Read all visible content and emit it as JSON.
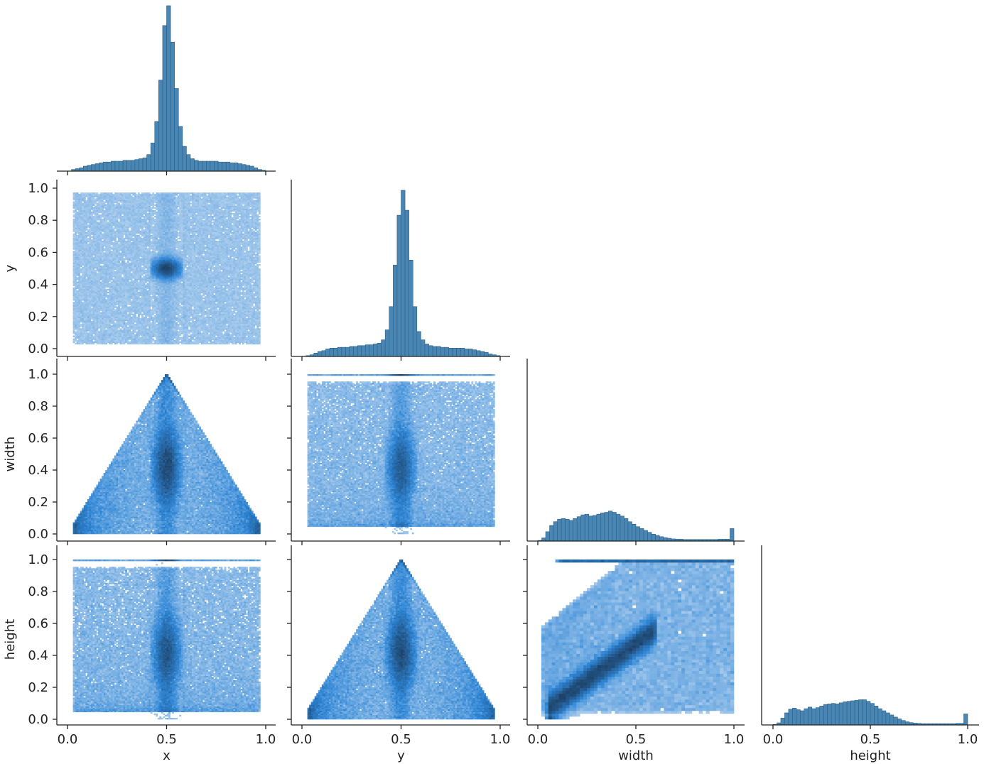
{
  "chart_data": {
    "type": "pairplot",
    "variables": [
      "x",
      "y",
      "width",
      "height"
    ],
    "layout": "lower-triangle (corner)",
    "colors": {
      "hist_fill": "#4a86b4",
      "hist_edge": "#2b5f86",
      "density_light": "#c6dcf2",
      "density_mid": "#2e86d6",
      "density_dark": "#1d3f63"
    },
    "axis_ticks": {
      "unit_short": [
        "0.0",
        "0.5",
        "1.0"
      ],
      "unit_long": [
        "0.0",
        "0.2",
        "0.4",
        "0.6",
        "0.8",
        "1.0"
      ]
    },
    "axis_values": {
      "unit_short": [
        0.0,
        0.5,
        1.0
      ],
      "unit_long": [
        0.0,
        0.2,
        0.4,
        0.6,
        0.8,
        1.0
      ]
    },
    "xlim": [
      0.0,
      1.0
    ],
    "ylim": [
      0.0,
      1.0
    ],
    "diagonal_histograms": {
      "x": {
        "bin_width": 0.02,
        "relative_counts": [
          0.0,
          0.01,
          0.015,
          0.02,
          0.03,
          0.035,
          0.04,
          0.045,
          0.05,
          0.055,
          0.055,
          0.06,
          0.06,
          0.06,
          0.065,
          0.065,
          0.065,
          0.07,
          0.075,
          0.08,
          0.1,
          0.17,
          0.3,
          0.55,
          0.88,
          1.0,
          0.78,
          0.5,
          0.27,
          0.15,
          0.1,
          0.075,
          0.065,
          0.06,
          0.06,
          0.06,
          0.06,
          0.06,
          0.055,
          0.055,
          0.055,
          0.05,
          0.05,
          0.045,
          0.04,
          0.035,
          0.03,
          0.02,
          0.01,
          0.005
        ]
      },
      "y": {
        "bin_width": 0.02,
        "relative_counts": [
          0.0,
          0.005,
          0.01,
          0.02,
          0.03,
          0.035,
          0.045,
          0.05,
          0.05,
          0.055,
          0.055,
          0.055,
          0.06,
          0.06,
          0.065,
          0.065,
          0.07,
          0.07,
          0.075,
          0.08,
          0.1,
          0.16,
          0.3,
          0.55,
          0.85,
          1.0,
          0.88,
          0.58,
          0.3,
          0.15,
          0.1,
          0.075,
          0.065,
          0.06,
          0.06,
          0.055,
          0.055,
          0.05,
          0.05,
          0.05,
          0.05,
          0.045,
          0.045,
          0.04,
          0.035,
          0.03,
          0.025,
          0.015,
          0.01,
          0.005
        ]
      },
      "width": {
        "bin_width": 0.02,
        "relative_counts": [
          0.02,
          0.1,
          0.3,
          0.5,
          0.62,
          0.7,
          0.72,
          0.7,
          0.66,
          0.72,
          0.78,
          0.84,
          0.86,
          0.8,
          0.82,
          0.86,
          0.9,
          0.92,
          0.96,
          0.92,
          0.86,
          0.8,
          0.72,
          0.62,
          0.54,
          0.46,
          0.4,
          0.34,
          0.28,
          0.22,
          0.18,
          0.14,
          0.11,
          0.09,
          0.07,
          0.06,
          0.06,
          0.05,
          0.05,
          0.05,
          0.05,
          0.05,
          0.05,
          0.05,
          0.05,
          0.05,
          0.06,
          0.06,
          0.06,
          0.4
        ]
      },
      "height": {
        "bin_width": 0.02,
        "relative_counts": [
          0.02,
          0.08,
          0.26,
          0.46,
          0.6,
          0.64,
          0.58,
          0.54,
          0.62,
          0.68,
          0.62,
          0.66,
          0.72,
          0.78,
          0.8,
          0.82,
          0.8,
          0.84,
          0.88,
          0.9,
          0.92,
          0.94,
          0.96,
          0.96,
          0.9,
          0.82,
          0.72,
          0.62,
          0.54,
          0.46,
          0.38,
          0.3,
          0.23,
          0.17,
          0.12,
          0.09,
          0.07,
          0.06,
          0.05,
          0.05,
          0.05,
          0.05,
          0.05,
          0.05,
          0.05,
          0.05,
          0.05,
          0.06,
          0.06,
          0.42
        ]
      }
    },
    "bivariate_density": {
      "y_vs_x": "diffuse uniform cloud over [0,1]x[0,1] with dense core at (0.5, 0.5)",
      "width_vs_x": "triangle bounded by width <= 1 - 2|x - 0.5|, dense core at x=0.5, width~0.4",
      "width_vs_y": "broad cloud, dense core at y=0.5, width~0.4, band at width=1.0",
      "height_vs_x": "broad cloud, dense core at x=0.5, height~0.4, band at height=1.0",
      "height_vs_y": "triangle bounded by height <= 1 - 2|y - 0.5|, dense core at y=0.5",
      "height_vs_width": "positive diagonal trend, dense ridge from (0.1,0.1) to (0.55,0.5), band at height=1.0"
    }
  }
}
